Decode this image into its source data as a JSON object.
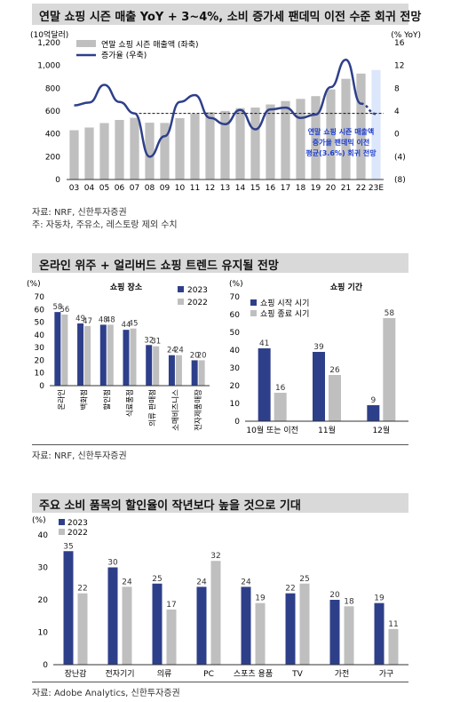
{
  "charts": [
    {
      "title": "연말 쇼핑 시즌 매출 YoY + 3~4%, 소비 증가세 팬데믹 이전 수준 회귀 전망",
      "source": "자료: NRF, 신한투자증권",
      "note": "주: 자동차, 주유소, 레스토랑 제외 수치"
    },
    {
      "title": "온라인 위주 + 얼리버드 쇼핑 트렌드 유지될 전망",
      "source": "자료: NRF, 신한투자증권"
    },
    {
      "title": "주요 소비 품목의 할인율이 작년보다 높을 것으로 기대",
      "source": "자료: Adobe Analytics, 신한투자증권"
    }
  ],
  "chart_data": [
    {
      "type": "bar",
      "subtype": "bar+line dual-axis",
      "categories": [
        "03",
        "04",
        "05",
        "06",
        "07",
        "08",
        "09",
        "10",
        "11",
        "12",
        "13",
        "14",
        "15",
        "16",
        "17",
        "18",
        "19",
        "20",
        "21",
        "22",
        "23E"
      ],
      "y_left_unit": "(10억달러)",
      "y_right_unit": "(% YoY)",
      "ylim_left": [
        0,
        1200
      ],
      "yticks_left": [
        "0",
        "200",
        "400",
        "600",
        "800",
        "1,000",
        "1,200"
      ],
      "ylim_right": [
        -8,
        16
      ],
      "yticks_right": [
        "(8)",
        "(4)",
        "0",
        "4",
        "8",
        "12",
        "16"
      ],
      "series": [
        {
          "name": "연말 쇼핑 시즌 매출액 (좌축)",
          "type": "bar",
          "axis": "left",
          "color": "#bfbfbf",
          "highlight_last_color": "#dde7fb",
          "values": [
            432,
            456,
            495,
            522,
            541,
            498,
            496,
            538,
            575,
            591,
            601,
            626,
            631,
            658,
            688,
            707,
            731,
            790,
            883,
            929,
            960
          ]
        },
        {
          "name": "증가율 (우축)",
          "type": "line",
          "axis": "right",
          "color": "#2e3f8a",
          "dashed_last_segment": true,
          "values": [
            5.0,
            5.5,
            8.6,
            5.6,
            3.6,
            -4.0,
            -0.4,
            5.6,
            6.8,
            2.8,
            1.7,
            4.2,
            0.8,
            4.3,
            4.6,
            2.8,
            3.4,
            8.2,
            13.0,
            5.3,
            3.5
          ]
        }
      ],
      "reference_line": {
        "value": 3.6,
        "axis": "right",
        "style": "dashed"
      },
      "annotation": [
        "연말 쇼핑 시즌 매출액",
        "증가율 팬데믹 이전",
        "평균(3.6%) 회귀 전망"
      ]
    },
    {
      "type": "bar",
      "title": "쇼핑 장소",
      "y_unit": "(%)",
      "ylim": [
        0,
        70
      ],
      "yticks": [
        "0",
        "10",
        "20",
        "30",
        "40",
        "50",
        "60",
        "70"
      ],
      "categories": [
        "온라인",
        "백화점",
        "할인점",
        "식료품점",
        "의류 판매점",
        "소매비즈니스",
        "전자제품매장"
      ],
      "series": [
        {
          "name": "2023",
          "color": "#2e3f8a",
          "values": [
            58,
            49,
            48,
            44,
            32,
            24,
            20
          ]
        },
        {
          "name": "2022",
          "color": "#bfbfbf",
          "values": [
            56,
            47,
            48,
            45,
            31,
            24,
            20
          ]
        }
      ]
    },
    {
      "type": "bar",
      "title": "쇼핑 기간",
      "y_unit": "(%)",
      "ylim": [
        0,
        70
      ],
      "yticks": [
        "0",
        "10",
        "20",
        "30",
        "40",
        "50",
        "60",
        "70"
      ],
      "categories": [
        "10월 또는 이전",
        "11월",
        "12월"
      ],
      "series": [
        {
          "name": "쇼핑 시작 시기",
          "color": "#2e3f8a",
          "values": [
            41,
            39,
            9
          ]
        },
        {
          "name": "쇼핑 종료 시기",
          "color": "#bfbfbf",
          "values": [
            16,
            26,
            58
          ]
        }
      ]
    },
    {
      "type": "bar",
      "y_unit": "(%)",
      "ylim": [
        0,
        40
      ],
      "yticks": [
        "0",
        "10",
        "20",
        "30",
        "40"
      ],
      "categories": [
        "장난감",
        "전자기기",
        "의류",
        "PC",
        "스포츠 용품",
        "TV",
        "가전",
        "가구"
      ],
      "series": [
        {
          "name": "2023",
          "color": "#2e3f8a",
          "values": [
            35,
            30,
            25,
            24,
            24,
            22,
            20,
            19
          ]
        },
        {
          "name": "2022",
          "color": "#bfbfbf",
          "values": [
            22,
            24,
            17,
            32,
            19,
            25,
            18,
            11
          ]
        }
      ]
    }
  ]
}
